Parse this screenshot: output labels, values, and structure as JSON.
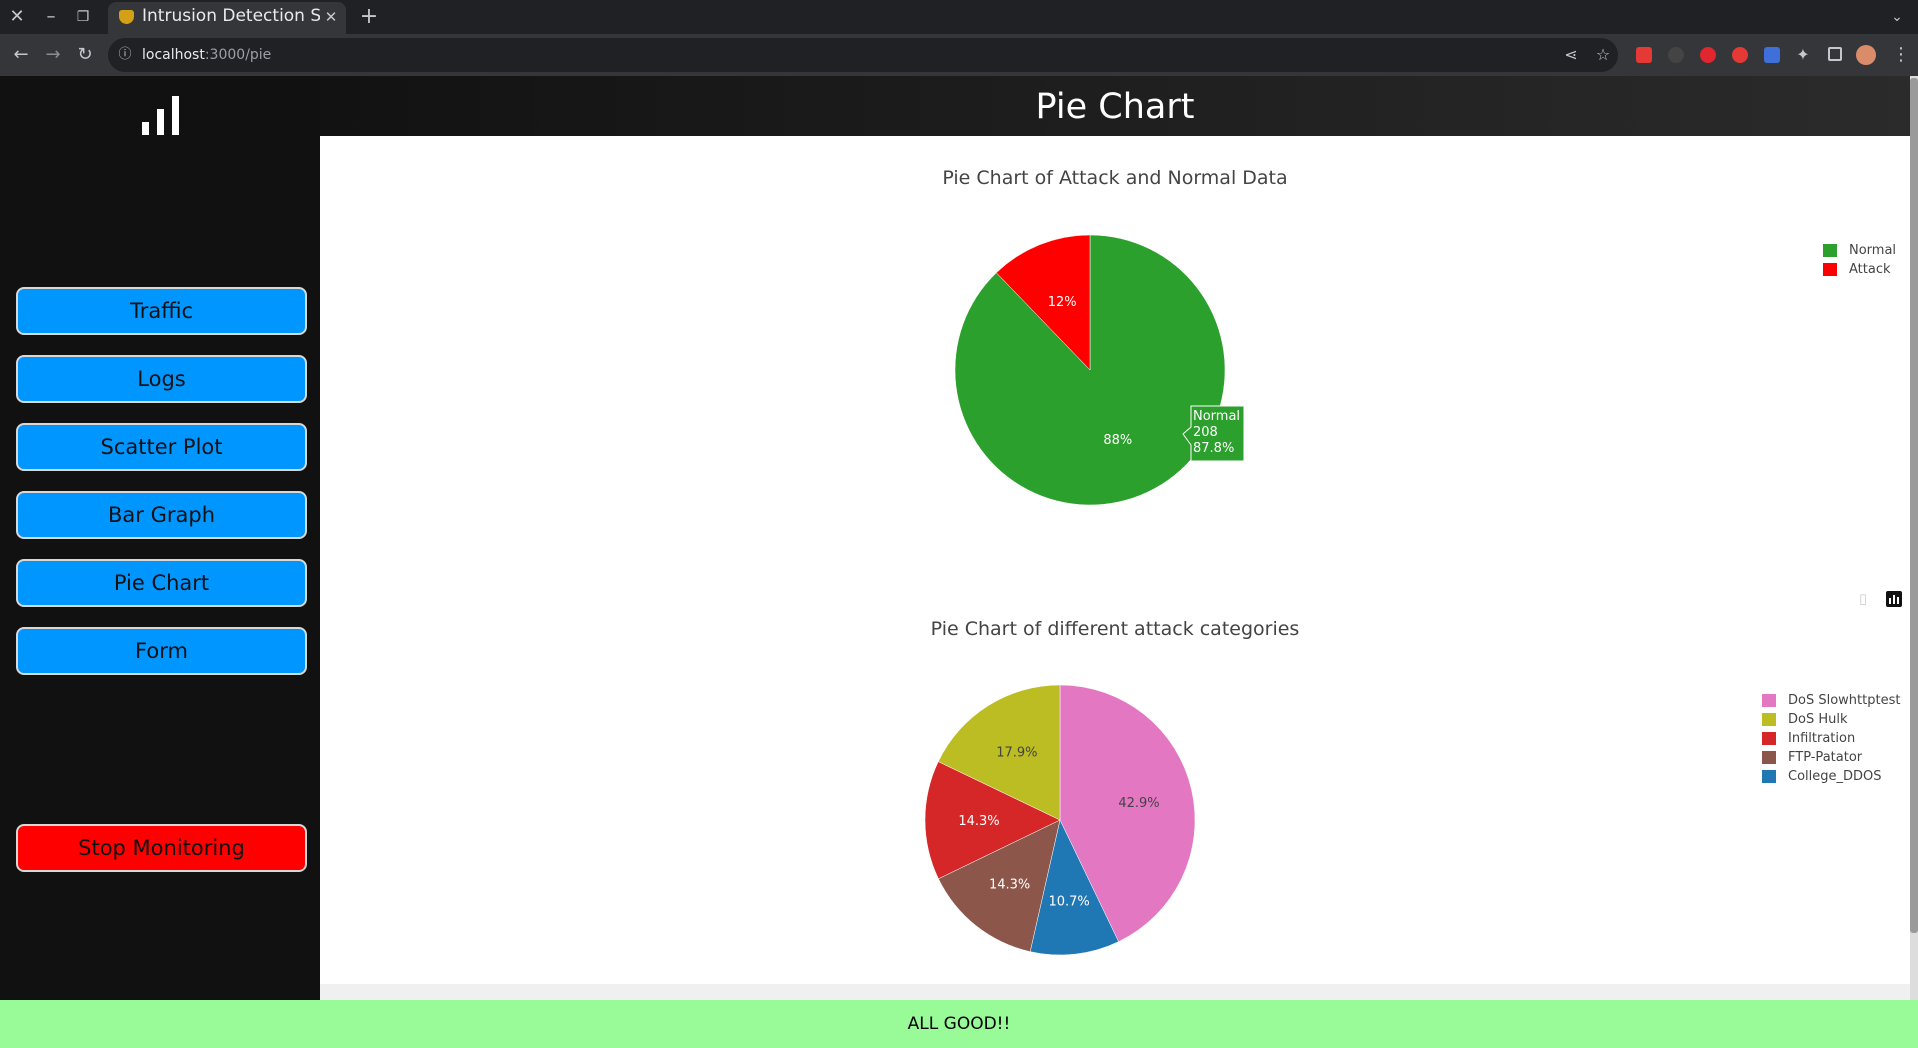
{
  "browser": {
    "tab_title": "Intrusion Detection Syst",
    "url_host": "localhost",
    "url_path": ":3000/pie",
    "new_tab": "+"
  },
  "app": {
    "page_title": "Pie Chart",
    "status": "ALL GOOD!!",
    "nav": {
      "traffic": "Traffic",
      "logs": "Logs",
      "scatter": "Scatter Plot",
      "bar": "Bar Graph",
      "pie": "Pie Chart",
      "form": "Form",
      "stop": "Stop Monitoring"
    }
  },
  "colors": {
    "nav_button": "#0096ff",
    "stop_button": "#ff0000",
    "status_bar": "#98fb98"
  },
  "tooltip": {
    "label": "Normal",
    "value": "208",
    "percent": "87.8%"
  },
  "chart_data": [
    {
      "type": "pie",
      "title": "Pie Chart of Attack and Normal Data",
      "labels": [
        "Normal",
        "Attack"
      ],
      "values": [
        87.8,
        12.2
      ],
      "slice_text": [
        "88%",
        "12%"
      ],
      "colors": [
        "#2ca02c",
        "#ff0000"
      ],
      "legend_position": "top-right"
    },
    {
      "type": "pie",
      "title": "Pie Chart of different attack categories",
      "labels": [
        "DoS Slowhttptest",
        "DoS Hulk",
        "Infiltration",
        "FTP-Patator",
        "College_DDOS"
      ],
      "values": [
        42.9,
        17.9,
        14.3,
        14.3,
        10.7
      ],
      "slice_text": [
        "42.9%",
        "17.9%",
        "14.3%",
        "14.3%",
        "10.7%"
      ],
      "slice_order": [
        "DoS Slowhttptest",
        "College_DDOS",
        "FTP-Patator",
        "Infiltration",
        "DoS Hulk"
      ],
      "colors": [
        "#e377c2",
        "#bcbd22",
        "#d62728",
        "#8c564b",
        "#1f77b4"
      ],
      "legend_position": "top-right"
    }
  ]
}
